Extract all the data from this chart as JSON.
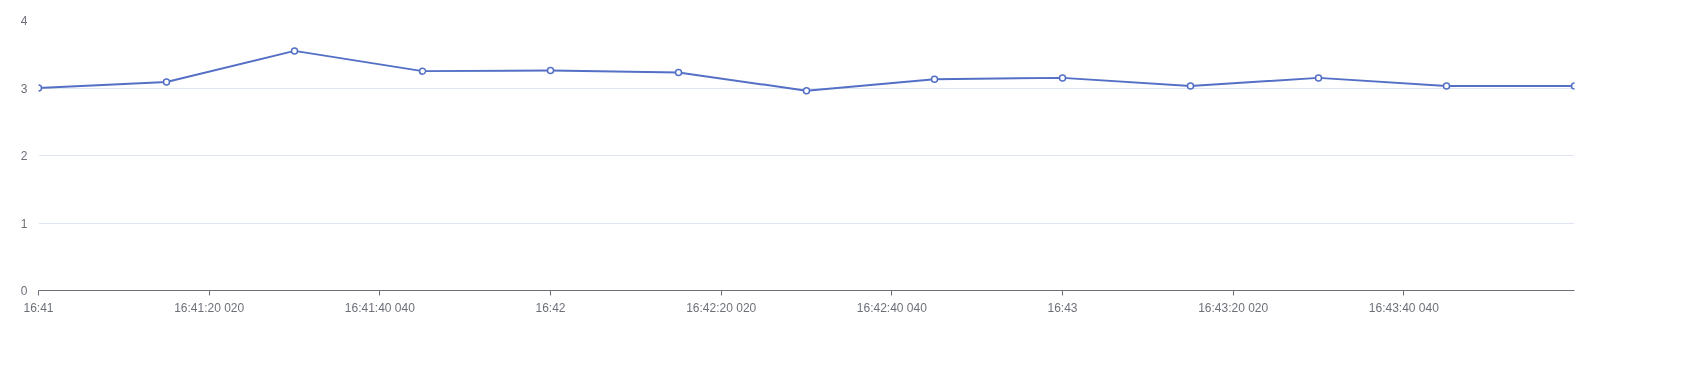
{
  "chart_data": {
    "type": "line",
    "marker": "circle",
    "grid": "y",
    "x": [
      16.683333,
      16.6875,
      16.691667,
      16.695833,
      16.7,
      16.704167,
      16.708333,
      16.7125,
      16.716667,
      16.720833,
      16.725,
      16.729167,
      16.733333
    ],
    "series": [
      {
        "color": "#5470c6",
        "values": [
          3.0,
          3.09,
          3.55,
          3.25,
          3.26,
          3.23,
          2.96,
          3.13,
          3.15,
          3.03,
          3.15,
          3.03,
          3.03
        ]
      }
    ],
    "xlim": [
      16.683333,
      16.733333
    ],
    "xticks": [
      {
        "value": 16.683333,
        "label": "16:41"
      },
      {
        "value": 16.688889,
        "label": "16:41:20 020"
      },
      {
        "value": 16.694444,
        "label": "16:41:40 040"
      },
      {
        "value": 16.7,
        "label": "16:42"
      },
      {
        "value": 16.705556,
        "label": "16:42:20 020"
      },
      {
        "value": 16.711111,
        "label": "16:42:40 040"
      },
      {
        "value": 16.716667,
        "label": "16:43"
      },
      {
        "value": 16.722222,
        "label": "16:43:20 020"
      },
      {
        "value": 16.727778,
        "label": "16:43:40 040"
      }
    ],
    "ylim": [
      0,
      4
    ],
    "yticks": [
      0,
      1,
      2,
      3,
      4
    ]
  }
}
